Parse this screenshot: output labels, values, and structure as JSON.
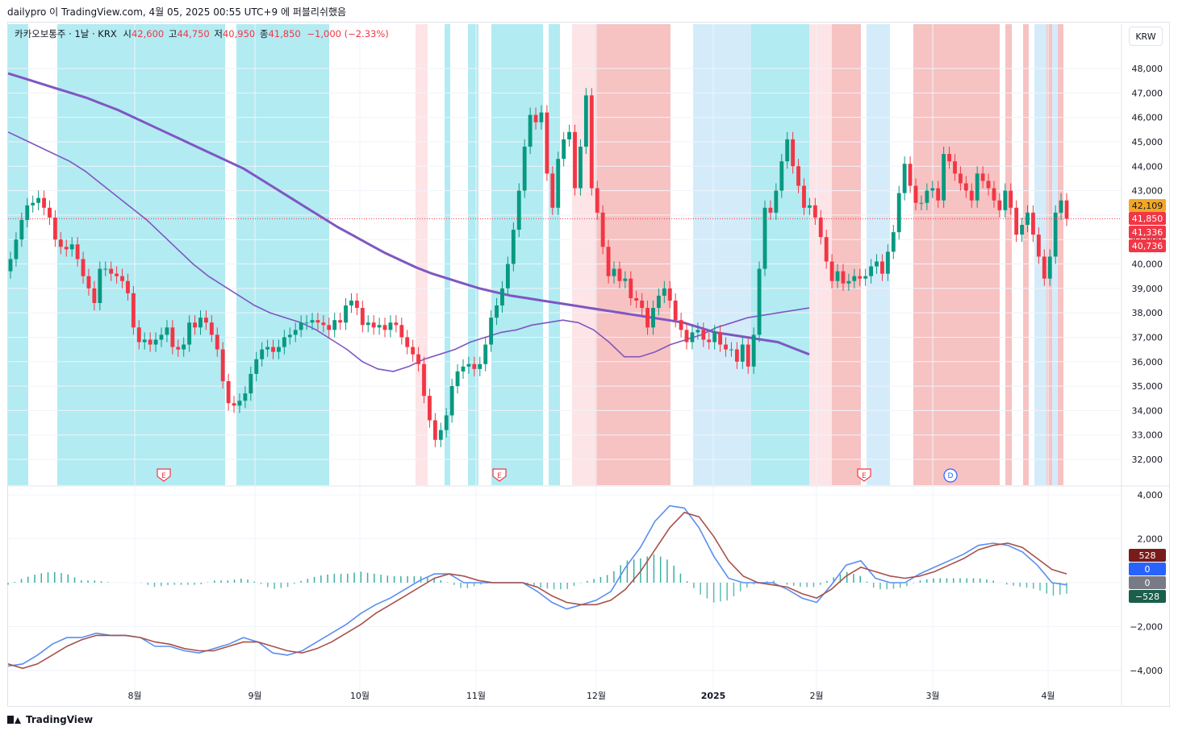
{
  "header": {
    "text": "dailypro 이 TradingView.com, 4월 05, 2025 00:55 UTC+9 에 퍼블리쉬했음"
  },
  "legend": {
    "symbol": "카카오보통주 · 1날 · KRX",
    "o_label": "시",
    "o": "42,600",
    "h_label": "고",
    "h": "44,750",
    "l_label": "저",
    "l": "40,950",
    "c_label": "종",
    "c": "41,850",
    "change": "−1,000 (−2.33%)"
  },
  "currency_button": "KRW",
  "footer": {
    "brand": "TradingView"
  },
  "colors": {
    "up": "#089981",
    "down": "#f23645",
    "bg_blue": "#b2ebf2",
    "bg_lightblue": "#d4ecfa",
    "bg_red": "#f7c2c2",
    "bg_pink": "#fde4e6",
    "ma_purple": "#7e57c2",
    "ma_red": "#ff0000",
    "ma_orange": "#f5bd6c",
    "macd_blue": "#5b8ef0",
    "signal": "#a6524b"
  },
  "chart_data": [
    {
      "type": "candlestick",
      "title": "카카오보통주 · 1날 · KRX",
      "x_ticks": [
        "8월",
        "9월",
        "10월",
        "11월",
        "12월",
        "2025",
        "2월",
        "3월",
        "4월"
      ],
      "y_ticks": [
        "48,000",
        "47,000",
        "46,000",
        "45,000",
        "44,000",
        "43,000",
        "42,000",
        "41,000",
        "40,000",
        "39,000",
        "38,000",
        "37,000",
        "36,000",
        "35,000",
        "34,000",
        "33,000",
        "32,000"
      ],
      "ylim": [
        31000,
        48500
      ],
      "closes": [
        40200,
        41000,
        41800,
        42400,
        42500,
        42700,
        42300,
        41900,
        41000,
        40700,
        40600,
        40800,
        40200,
        39500,
        39000,
        38400,
        39800,
        39800,
        39600,
        39500,
        39300,
        38800,
        37400,
        36800,
        36900,
        36700,
        36900,
        37100,
        37400,
        36600,
        36500,
        36700,
        37600,
        37400,
        37800,
        37600,
        37100,
        36500,
        35200,
        34300,
        34200,
        34400,
        34700,
        35500,
        36100,
        36500,
        36600,
        36400,
        36600,
        37000,
        37100,
        37300,
        37600,
        37600,
        37700,
        37600,
        37500,
        37300,
        37700,
        37600,
        38300,
        38500,
        38200,
        37500,
        37600,
        37400,
        37500,
        37300,
        37600,
        37500,
        37000,
        36600,
        36300,
        35900,
        34600,
        33600,
        32800,
        33200,
        33800,
        35000,
        35600,
        35800,
        35900,
        35700,
        35900,
        36700,
        37800,
        38300,
        39000,
        40000,
        41400,
        43000,
        44800,
        46100,
        45800,
        46200,
        43700,
        42300,
        44300,
        45100,
        45400,
        43100,
        44800,
        46900,
        43100,
        42100,
        40700,
        39500,
        39800,
        39300,
        39400,
        38600,
        38500,
        38200,
        37400,
        38200,
        38700,
        39000,
        38500,
        37700,
        37300,
        36800,
        37200,
        37300,
        36900,
        36800,
        37200,
        36700,
        36500,
        36500,
        36000,
        36700,
        35800,
        37100,
        39800,
        42300,
        42100,
        43000,
        44200,
        45100,
        44000,
        43200,
        42300,
        42400,
        41900,
        41100,
        40100,
        39300,
        39700,
        39200,
        39300,
        39500,
        39400,
        39500,
        39900,
        40100,
        39600,
        40500,
        41300,
        42900,
        44100,
        43200,
        42500,
        42500,
        43000,
        43100,
        42600,
        44500,
        44200,
        43700,
        43300,
        43000,
        42600,
        43700,
        43400,
        43100,
        42600,
        42200,
        43000,
        42300,
        41200,
        41600,
        42100,
        41200,
        40300,
        39400,
        40300,
        42100,
        42600,
        41850
      ],
      "ma_purple_long": [
        47800,
        47600,
        47400,
        47200,
        47000,
        46800,
        46550,
        46300,
        46000,
        45700,
        45400,
        45100,
        44800,
        44500,
        44200,
        43900,
        43500,
        43100,
        42700,
        42300,
        41900,
        41500,
        41150,
        40800,
        40450,
        40150,
        39850,
        39600,
        39400,
        39200,
        39000,
        38850,
        38700,
        38600,
        38500,
        38400,
        38300,
        38200,
        38100,
        38000,
        37900,
        37800,
        37700,
        37600,
        37400,
        37200,
        37100,
        37000,
        36900,
        36800,
        36550,
        36300
      ],
      "ma_purple_short": [
        45400,
        45100,
        44800,
        44500,
        44200,
        43800,
        43300,
        42800,
        42300,
        41800,
        41200,
        40600,
        40000,
        39500,
        39100,
        38700,
        38300,
        38000,
        37800,
        37600,
        37300,
        36900,
        36500,
        36000,
        35700,
        35600,
        35800,
        36100,
        36300,
        36500,
        36800,
        37000,
        37200,
        37300,
        37500,
        37600,
        37700,
        37600,
        37300,
        36800,
        36200,
        36200,
        36400,
        36700,
        36900,
        37100,
        37400,
        37600,
        37800,
        37900,
        38000,
        38100,
        38200
      ]
    },
    {
      "type": "macd",
      "y_ticks": [
        "4,000",
        "2,000",
        "0",
        "−2,000",
        "−4,000"
      ],
      "ylim": [
        -4500,
        4200
      ],
      "badges": [
        "528",
        "0",
        "0",
        "−528"
      ],
      "macd": [
        -3800,
        -3700,
        -3300,
        -2800,
        -2500,
        -2500,
        -2300,
        -2400,
        -2400,
        -2500,
        -2900,
        -2900,
        -3100,
        -3200,
        -3000,
        -2800,
        -2500,
        -2700,
        -3200,
        -3300,
        -3100,
        -2700,
        -2300,
        -1900,
        -1400,
        -1000,
        -700,
        -300,
        100,
        400,
        400,
        0,
        0,
        0,
        0,
        0,
        -400,
        -900,
        -1200,
        -1000,
        -800,
        -400,
        700,
        1600,
        2800,
        3500,
        3400,
        2500,
        1200,
        200,
        0,
        0,
        0,
        -300,
        -700,
        -900,
        -100,
        800,
        1000,
        200,
        0,
        0,
        400,
        700,
        1000,
        1300,
        1700,
        1800,
        1700,
        1400,
        800,
        0,
        -100
      ],
      "signal": [
        -3700,
        -3900,
        -3700,
        -3300,
        -2900,
        -2600,
        -2400,
        -2400,
        -2400,
        -2500,
        -2700,
        -2800,
        -3000,
        -3100,
        -3100,
        -2900,
        -2700,
        -2700,
        -2900,
        -3100,
        -3200,
        -3000,
        -2700,
        -2300,
        -1900,
        -1400,
        -1000,
        -600,
        -200,
        200,
        400,
        300,
        100,
        0,
        0,
        0,
        -200,
        -600,
        -900,
        -1000,
        -1000,
        -800,
        -300,
        500,
        1500,
        2500,
        3200,
        3000,
        2100,
        1000,
        300,
        0,
        -100,
        -200,
        -500,
        -700,
        -300,
        300,
        700,
        500,
        300,
        200,
        300,
        500,
        800,
        1100,
        1500,
        1700,
        1800,
        1600,
        1100,
        600,
        400
      ]
    }
  ]
}
